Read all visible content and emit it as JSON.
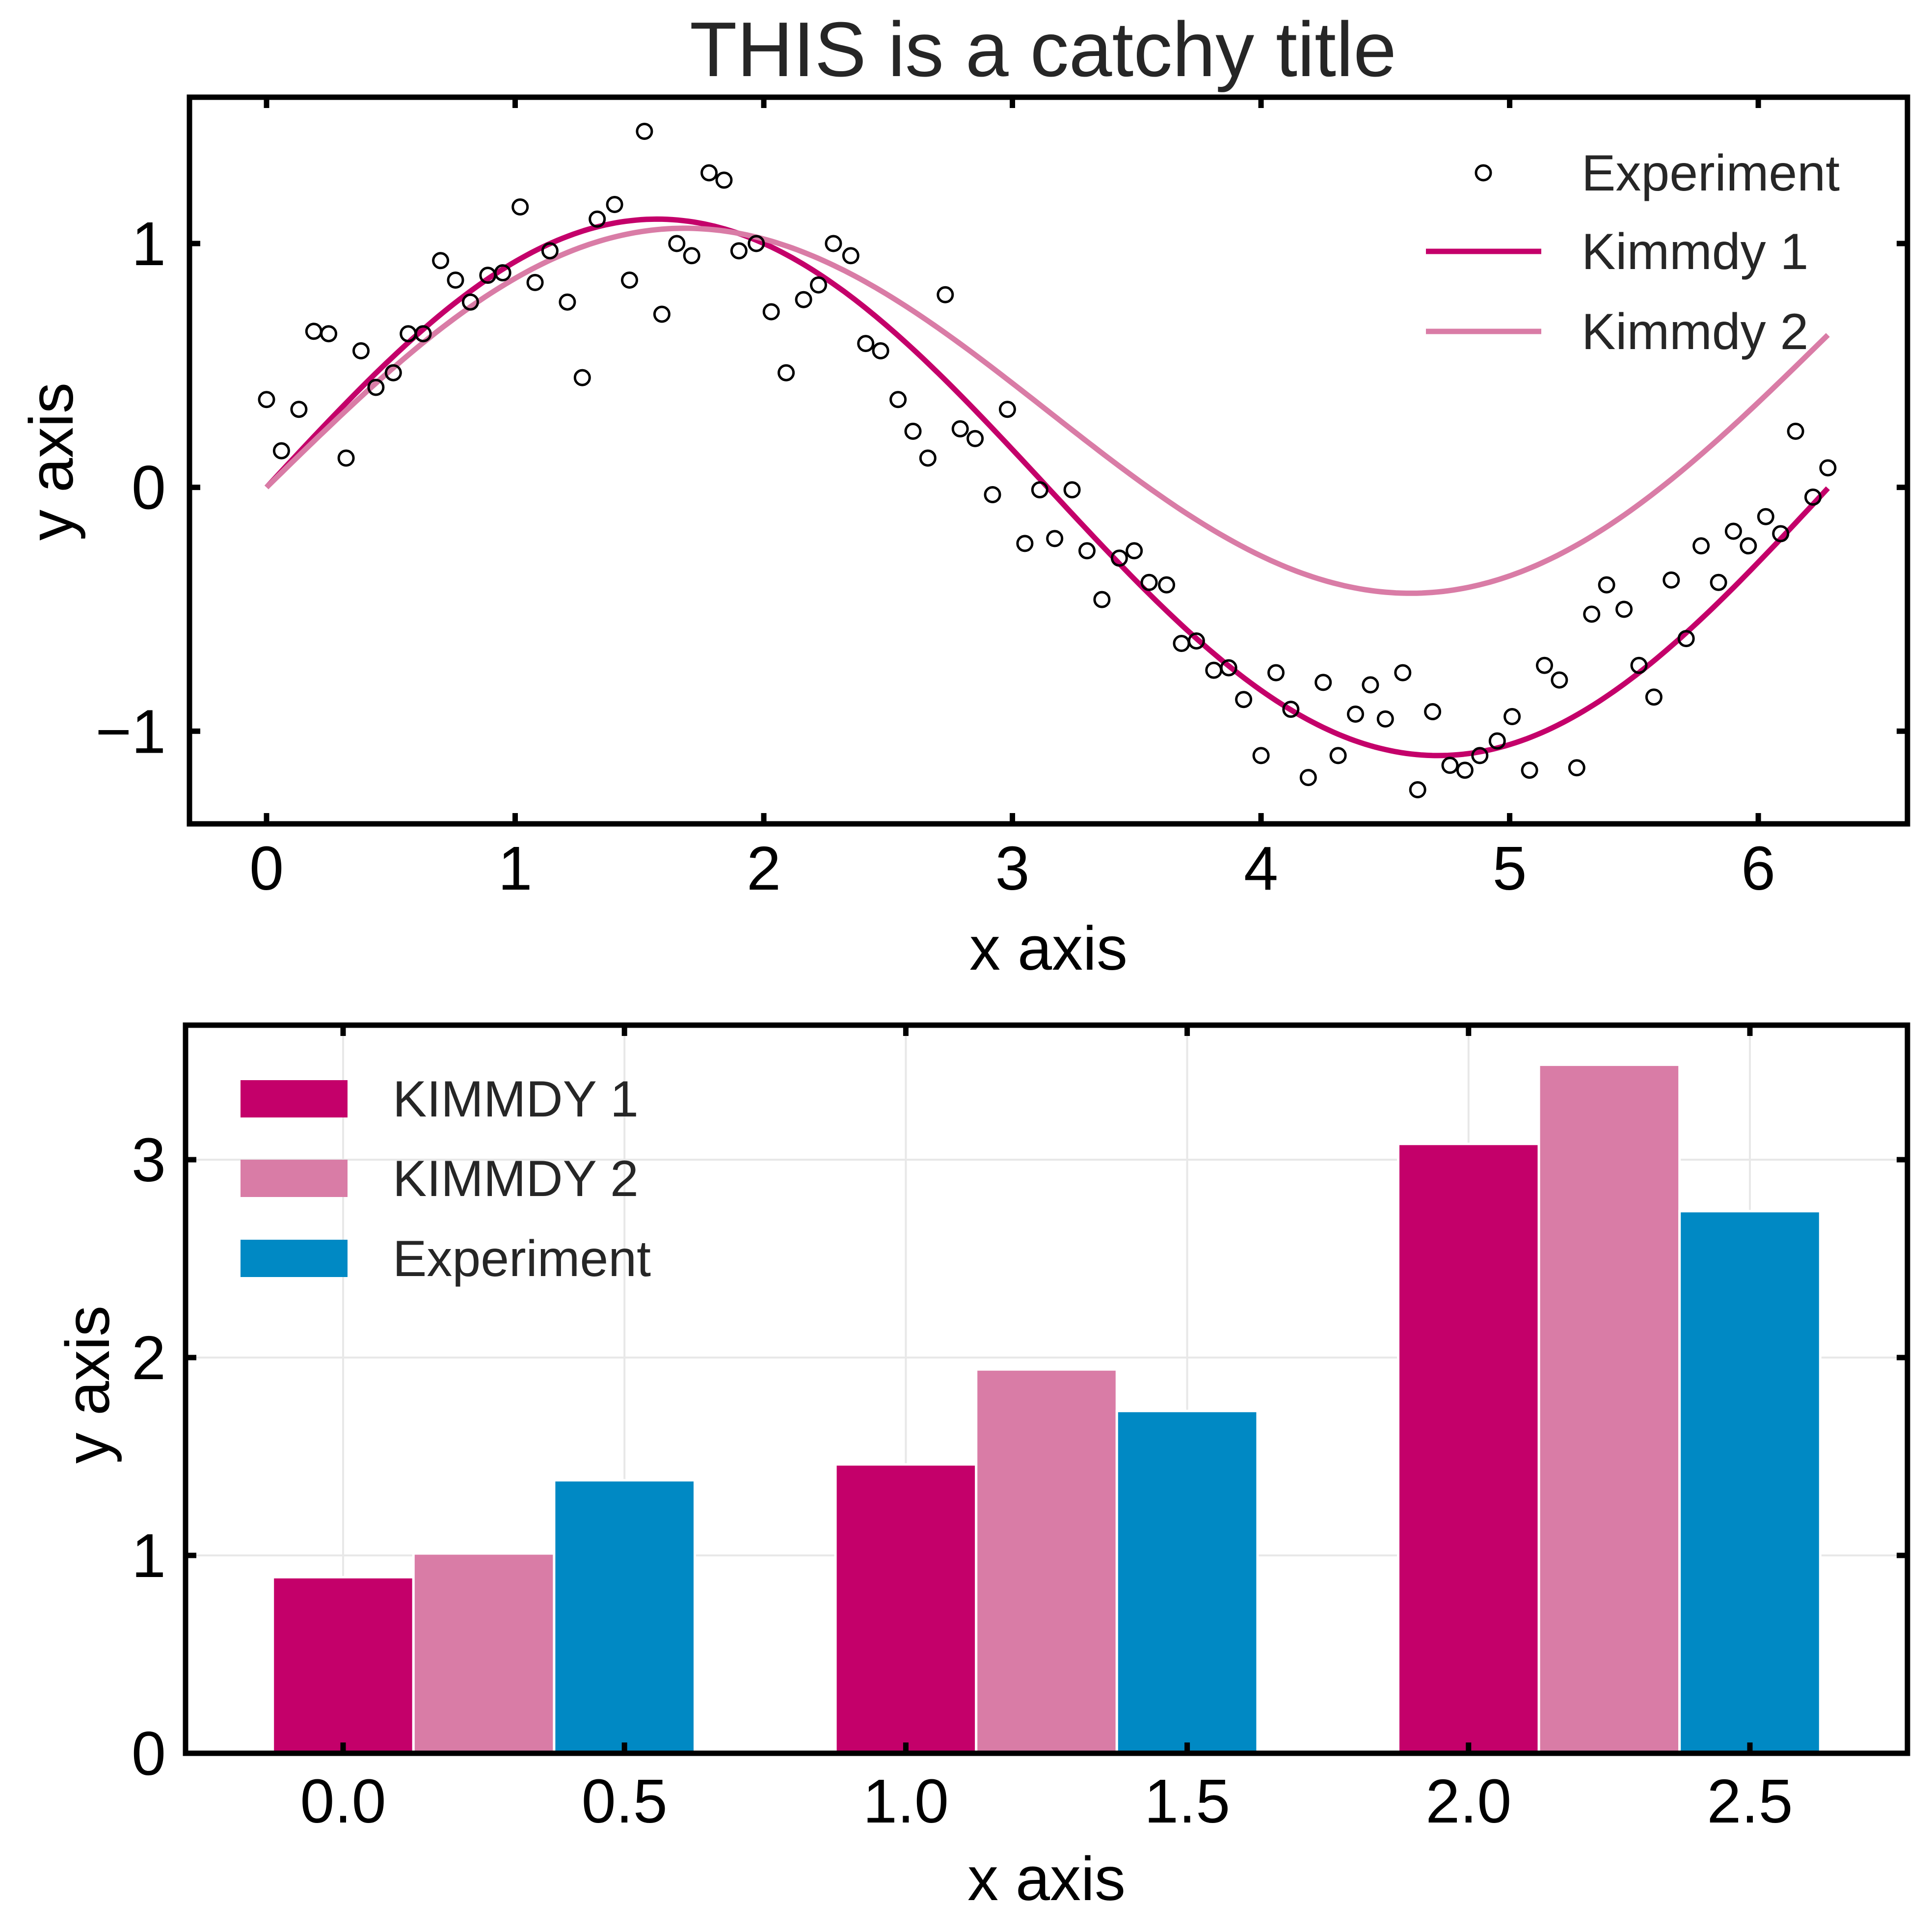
{
  "title": "THIS is a catchy title",
  "colors": {
    "kimmdy1": "#c4006a",
    "kimmdy2": "#d97ca6",
    "experiment": "#0089c4",
    "axis": "#000000",
    "grid": "#e8e8e8",
    "title_text": "#262626"
  },
  "chart_data": [
    {
      "type": "line",
      "xlabel": "x axis",
      "ylabel": "y axis",
      "xlim": [
        -0.31,
        6.6
      ],
      "ylim": [
        -1.38,
        1.6
      ],
      "xticks": [
        0,
        1,
        2,
        3,
        4,
        5,
        6
      ],
      "xtick_labels": [
        "0",
        "1",
        "2",
        "3",
        "4",
        "5",
        "6"
      ],
      "yticks": [
        -1,
        0,
        1
      ],
      "ytick_labels": [
        "−1",
        "0",
        "1"
      ],
      "grid": false,
      "legend_position": "top-right",
      "legend": [
        "Experiment",
        "Kimmdy 1",
        "Kimmdy 2"
      ],
      "series": [
        {
          "name": "Experiment",
          "kind": "scatter",
          "x": [
            0.0,
            0.06,
            0.13,
            0.19,
            0.25,
            0.32,
            0.38,
            0.44,
            0.51,
            0.57,
            0.63,
            0.7,
            0.76,
            0.82,
            0.89,
            0.95,
            1.02,
            1.08,
            1.14,
            1.21,
            1.27,
            1.33,
            1.4,
            1.46,
            1.52,
            1.59,
            1.65,
            1.71,
            1.78,
            1.84,
            1.9,
            1.97,
            2.03,
            2.09,
            2.16,
            2.22,
            2.28,
            2.35,
            2.41,
            2.47,
            2.54,
            2.6,
            2.66,
            2.73,
            2.79,
            2.85,
            2.92,
            2.98,
            3.05,
            3.11,
            3.17,
            3.24,
            3.3,
            3.36,
            3.43,
            3.49,
            3.55,
            3.62,
            3.68,
            3.74,
            3.81,
            3.87,
            3.93,
            4.0,
            4.06,
            4.12,
            4.19,
            4.25,
            4.31,
            4.38,
            4.44,
            4.5,
            4.57,
            4.63,
            4.69,
            4.76,
            4.82,
            4.88,
            4.95,
            5.01,
            5.08,
            5.14,
            5.2,
            5.27,
            5.33,
            5.39,
            5.46,
            5.52,
            5.58,
            5.65,
            5.71,
            5.77,
            5.84,
            5.9,
            5.96,
            6.03,
            6.09,
            6.15,
            6.22,
            6.28
          ],
          "y": [
            0.36,
            0.15,
            0.32,
            0.64,
            0.63,
            0.12,
            0.56,
            0.41,
            0.47,
            0.63,
            0.63,
            0.93,
            0.85,
            0.76,
            0.87,
            0.88,
            1.15,
            0.84,
            0.97,
            0.76,
            0.45,
            1.1,
            1.16,
            0.85,
            1.46,
            0.71,
            1.0,
            0.95,
            1.29,
            1.26,
            0.97,
            1.0,
            0.72,
            0.47,
            0.77,
            0.83,
            1.0,
            0.95,
            0.59,
            0.56,
            0.36,
            0.23,
            0.12,
            0.79,
            0.24,
            0.2,
            -0.03,
            0.32,
            -0.23,
            -0.01,
            -0.21,
            -0.01,
            -0.26,
            -0.46,
            -0.29,
            -0.26,
            -0.39,
            -0.4,
            -0.64,
            -0.63,
            -0.75,
            -0.74,
            -0.87,
            -1.1,
            -0.76,
            -0.91,
            -1.19,
            -0.8,
            -1.1,
            -0.93,
            -0.81,
            -0.95,
            -0.76,
            -1.24,
            -0.92,
            -1.14,
            -1.16,
            -1.1,
            -1.04,
            -0.94,
            -1.16,
            -0.73,
            -0.79,
            -1.15,
            -0.52,
            -0.4,
            -0.5,
            -0.73,
            -0.86,
            -0.38,
            -0.62,
            -0.24,
            -0.39,
            -0.18,
            -0.24,
            -0.12,
            -0.19,
            0.23,
            -0.04,
            0.08
          ]
        },
        {
          "name": "Kimmdy 1",
          "kind": "line",
          "function": "1.1*sin(x)",
          "x_range": [
            0,
            6.28
          ]
        },
        {
          "name": "Kimmdy 2",
          "kind": "line",
          "function": "0.9*sin(x) + 0.1*x",
          "x_range": [
            0,
            6.28
          ]
        }
      ]
    },
    {
      "type": "bar",
      "xlabel": "x axis",
      "ylabel": "y axis",
      "xlim": [
        -0.28,
        2.78
      ],
      "ylim": [
        0,
        3.68
      ],
      "xticks": [
        0.0,
        0.5,
        1.0,
        1.5,
        2.0,
        2.5
      ],
      "xtick_labels": [
        "0.0",
        "0.5",
        "1.0",
        "1.5",
        "2.0",
        "2.5"
      ],
      "yticks": [
        0,
        1,
        2,
        3
      ],
      "ytick_labels": [
        "0",
        "1",
        "2",
        "3"
      ],
      "grid": true,
      "legend_position": "top-left",
      "bar_width": 0.25,
      "series": [
        {
          "name": "KIMMDY 1",
          "x": [
            0.0,
            1.0,
            2.0
          ],
          "values": [
            0.89,
            1.46,
            3.08
          ]
        },
        {
          "name": "KIMMDY 2",
          "x": [
            0.25,
            1.25,
            2.25
          ],
          "values": [
            1.01,
            1.94,
            3.48
          ]
        },
        {
          "name": "Experiment",
          "x": [
            0.5,
            1.5,
            2.5
          ],
          "values": [
            1.38,
            1.73,
            2.74
          ]
        }
      ]
    }
  ]
}
